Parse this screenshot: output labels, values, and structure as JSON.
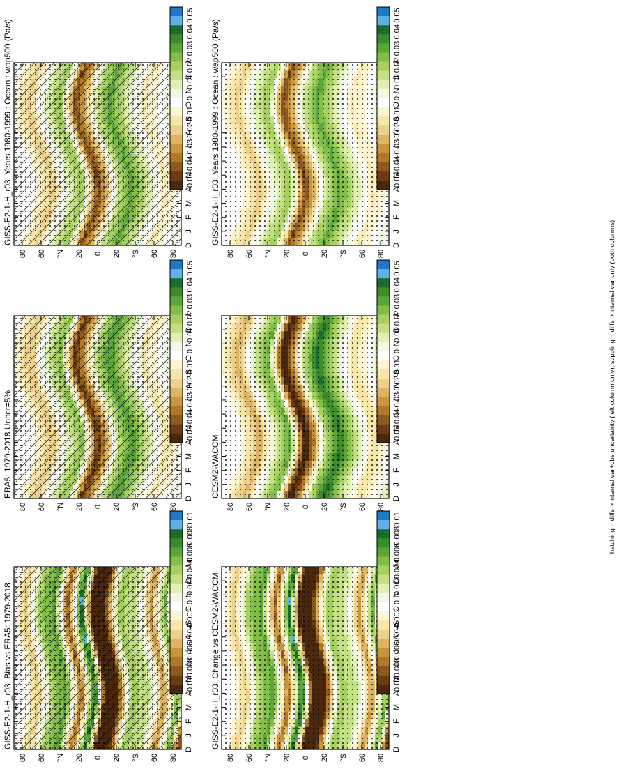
{
  "footer": "hatching = diffs > internal var+obs uncertainty (left column only); stippling = diffs > internal var only (both columns)",
  "panels": [
    {
      "id": "p1",
      "title": "GISS-E2-1-H_r03: Years 1980-1999 : Ocean : wap500 (Pa/s)",
      "scale": "main",
      "hatch": true,
      "stipple": true
    },
    {
      "id": "p2",
      "title": "GISS-E2-1-H_r03: Years 1980-1999 : Ocean : wap500 (Pa/s)",
      "scale": "main",
      "hatch": false,
      "stipple": true
    },
    {
      "id": "p3",
      "title": "ERA5: 1979-2018 Uncer=5%",
      "scale": "main",
      "hatch": true,
      "stipple": true
    },
    {
      "id": "p4",
      "title": "CESM2-WACCM",
      "scale": "main",
      "hatch": false,
      "stipple": true
    },
    {
      "id": "p5",
      "title": "GISS-E2-1-H_r03: Bias vs ERA5: 1979-2018",
      "scale": "diff",
      "hatch": true,
      "stipple": true
    },
    {
      "id": "p6",
      "title": "GISS-E2-1-H_r03: Change vs CESM2-WACCM",
      "scale": "diff",
      "hatch": false,
      "stipple": true
    }
  ],
  "chart_data": {
    "type": "heatmap",
    "x": [
      "D",
      "J",
      "F",
      "M",
      "A",
      "M",
      "J",
      "J",
      "A",
      "S",
      "O",
      "N",
      "D",
      "J"
    ],
    "y_ticks": [
      "80",
      "60",
      "°N",
      "20",
      "0",
      "20",
      "°S",
      "60",
      "80"
    ],
    "colorbars": {
      "main": {
        "labels": [
          "0.05",
          "0.04",
          "0.03",
          "0.02",
          "0.01",
          "0",
          "-0.01",
          "-0.02",
          "-0.03",
          "-0.04",
          "-0.05"
        ]
      },
      "diff": {
        "labels": [
          "0.01",
          "0.008",
          "0.006",
          "0.004",
          "0.002",
          "0",
          "-0.002",
          "-0.004",
          "-0.006",
          "-0.008",
          "-0.01"
        ]
      }
    },
    "palette": [
      "#1f78c8",
      "#62b0e8",
      "#1a6e2a",
      "#3c8c2c",
      "#5da53a",
      "#84be4a",
      "#a6d160",
      "#c4e084",
      "#dff0b0",
      "#f2f8e6",
      "#ffffff",
      "#fff4d2",
      "#f6e6a8",
      "#ecd08c",
      "#dcb464",
      "#c8963c",
      "#b07828",
      "#8c5a1e",
      "#6a3c12",
      "#4a2810"
    ],
    "main_bands": [
      {
        "lat": 85,
        "v": 0.0
      },
      {
        "lat": 72,
        "v": -0.01
      },
      {
        "lat": 60,
        "v": -0.02
      },
      {
        "lat": 48,
        "v": 0.0
      },
      {
        "lat": 38,
        "v": 0.012
      },
      {
        "lat": 28,
        "v": 0.022
      },
      {
        "lat": 12,
        "v": -0.045
      },
      {
        "lat": 0,
        "v": -0.02
      },
      {
        "lat": -10,
        "v": 0.012
      },
      {
        "lat": -25,
        "v": 0.03
      },
      {
        "lat": -38,
        "v": 0.015
      },
      {
        "lat": -52,
        "v": 0.0
      },
      {
        "lat": -62,
        "v": -0.012
      },
      {
        "lat": -75,
        "v": -0.005
      },
      {
        "lat": -88,
        "v": 0.005
      }
    ],
    "diff_bands": [
      {
        "lat": 85,
        "v": 0.0
      },
      {
        "lat": 70,
        "v": -0.004
      },
      {
        "lat": 55,
        "v": 0.004
      },
      {
        "lat": 40,
        "v": 0.006
      },
      {
        "lat": 25,
        "v": -0.008
      },
      {
        "lat": 10,
        "v": 0.009
      },
      {
        "lat": 0,
        "v": -0.01
      },
      {
        "lat": -15,
        "v": -0.01
      },
      {
        "lat": -30,
        "v": 0.004
      },
      {
        "lat": -50,
        "v": 0.002
      },
      {
        "lat": -65,
        "v": -0.006
      },
      {
        "lat": -80,
        "v": 0.006
      },
      {
        "lat": -88,
        "v": -0.008
      }
    ]
  }
}
